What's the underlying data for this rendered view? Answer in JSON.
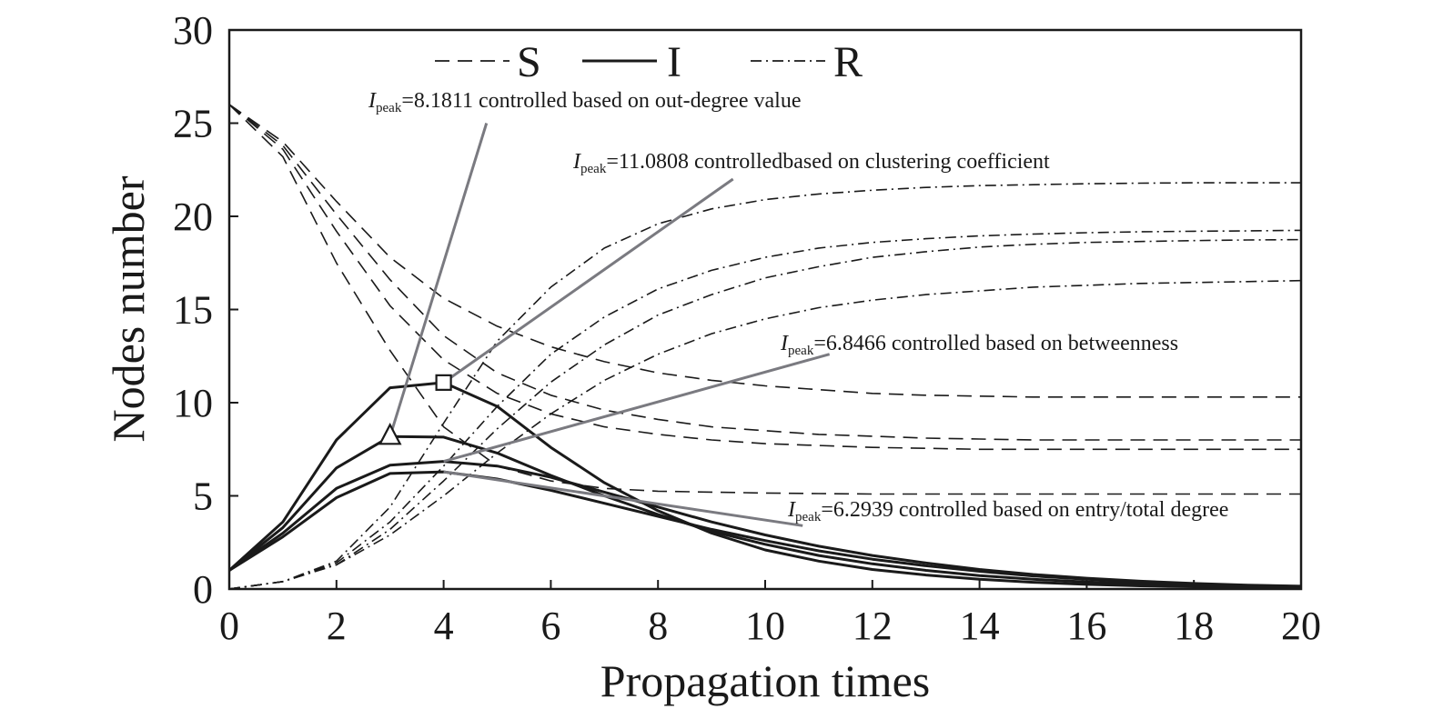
{
  "chart_data": {
    "type": "line",
    "xlabel": "Propagation times",
    "ylabel": "Nodes number",
    "xlim": [
      0,
      20
    ],
    "ylim": [
      0,
      30
    ],
    "xticks": [
      "0",
      "2",
      "4",
      "6",
      "8",
      "10",
      "12",
      "14",
      "16",
      "18",
      "20"
    ],
    "yticks": [
      "0",
      "5",
      "10",
      "15",
      "20",
      "25",
      "30"
    ],
    "legend_position": "top-center",
    "legend": [
      {
        "name": "S",
        "style": "dashed"
      },
      {
        "name": "I",
        "style": "solid"
      },
      {
        "name": "R",
        "style": "dashdot"
      }
    ],
    "x": [
      0,
      1,
      2,
      3,
      4,
      5,
      6,
      7,
      8,
      9,
      10,
      11,
      12,
      13,
      14,
      15,
      16,
      17,
      18,
      19,
      20
    ],
    "series": [
      {
        "group": "S",
        "values": [
          26,
          23.2,
          17.5,
          12.8,
          8.7,
          6.6,
          5.8,
          5.4,
          5.25,
          5.2,
          5.15,
          5.12,
          5.1,
          5.1,
          5.1,
          5.1,
          5.1,
          5.1,
          5.1,
          5.1,
          5.1
        ]
      },
      {
        "group": "S",
        "values": [
          26,
          23.6,
          19.2,
          15.2,
          12.3,
          10.5,
          9.4,
          8.7,
          8.3,
          8.0,
          7.8,
          7.7,
          7.6,
          7.55,
          7.5,
          7.5,
          7.5,
          7.5,
          7.5,
          7.5,
          7.5
        ]
      },
      {
        "group": "S",
        "values": [
          26,
          23.8,
          20.1,
          16.6,
          13.6,
          11.6,
          10.4,
          9.6,
          9.1,
          8.7,
          8.5,
          8.3,
          8.2,
          8.1,
          8.05,
          8.0,
          8.0,
          8.0,
          8.0,
          8.0,
          8.0
        ]
      },
      {
        "group": "S",
        "values": [
          26,
          24.0,
          20.8,
          17.8,
          15.6,
          14.1,
          13.0,
          12.2,
          11.6,
          11.2,
          10.9,
          10.7,
          10.5,
          10.4,
          10.35,
          10.3,
          10.3,
          10.3,
          10.3,
          10.3,
          10.3
        ]
      },
      {
        "group": "I",
        "values": [
          1,
          3.6,
          8.0,
          10.8,
          11.08,
          9.8,
          7.6,
          5.7,
          4.2,
          3.0,
          2.1,
          1.5,
          1.05,
          0.75,
          0.52,
          0.36,
          0.25,
          0.17,
          0.12,
          0.08,
          0.05
        ]
      },
      {
        "group": "I",
        "values": [
          1,
          3.3,
          6.5,
          8.18,
          8.15,
          7.3,
          6.1,
          5.0,
          4.0,
          3.1,
          2.4,
          1.8,
          1.35,
          1.0,
          0.72,
          0.52,
          0.38,
          0.27,
          0.19,
          0.13,
          0.09
        ]
      },
      {
        "group": "I",
        "values": [
          1,
          3.0,
          5.4,
          6.65,
          6.85,
          6.6,
          6.0,
          5.2,
          4.4,
          3.6,
          2.9,
          2.3,
          1.8,
          1.4,
          1.05,
          0.78,
          0.58,
          0.42,
          0.3,
          0.21,
          0.15
        ]
      },
      {
        "group": "I",
        "values": [
          1,
          2.8,
          4.9,
          6.2,
          6.29,
          5.9,
          5.3,
          4.6,
          3.9,
          3.2,
          2.6,
          2.05,
          1.6,
          1.25,
          0.95,
          0.7,
          0.52,
          0.38,
          0.27,
          0.19,
          0.13
        ]
      },
      {
        "group": "R",
        "values": [
          0,
          0.4,
          1.5,
          4.4,
          8.9,
          13.3,
          16.2,
          18.3,
          19.6,
          20.4,
          20.9,
          21.2,
          21.4,
          21.55,
          21.65,
          21.7,
          21.75,
          21.78,
          21.8,
          21.8,
          21.8
        ]
      },
      {
        "group": "R",
        "values": [
          0,
          0.4,
          1.4,
          3.6,
          6.6,
          9.8,
          12.6,
          14.6,
          16.1,
          17.1,
          17.8,
          18.3,
          18.6,
          18.8,
          18.95,
          19.05,
          19.12,
          19.17,
          19.2,
          19.22,
          19.25
        ]
      },
      {
        "group": "R",
        "values": [
          0,
          0.4,
          1.3,
          3.2,
          5.8,
          8.6,
          11.1,
          13.1,
          14.7,
          15.8,
          16.7,
          17.3,
          17.8,
          18.1,
          18.35,
          18.5,
          18.6,
          18.65,
          18.7,
          18.73,
          18.75
        ]
      },
      {
        "group": "R",
        "values": [
          0,
          0.4,
          1.3,
          2.9,
          5.0,
          7.3,
          9.4,
          11.2,
          12.6,
          13.7,
          14.5,
          15.1,
          15.5,
          15.8,
          16.0,
          16.2,
          16.3,
          16.4,
          16.45,
          16.5,
          16.55
        ]
      }
    ],
    "markers": [
      {
        "shape": "triangle",
        "x": 3,
        "y": 8.18
      },
      {
        "shape": "square",
        "x": 4,
        "y": 11.08
      }
    ],
    "annotations": [
      {
        "prefix": "I",
        "sub": "peak",
        "text": "=8.1811 controlled based on out-degree value",
        "target": [
          3,
          8.18
        ],
        "end": [
          4.8,
          25.0
        ]
      },
      {
        "prefix": "I",
        "sub": "peak",
        "text": "=11.0808 controlledbased on clustering coefficient",
        "target": [
          4,
          11.08
        ],
        "end": [
          9.4,
          22.0
        ]
      },
      {
        "prefix": "I",
        "sub": "peak",
        "text": "=6.8466 controlled based on betweenness",
        "target": [
          4,
          6.85
        ],
        "end": [
          11.2,
          12.6
        ]
      },
      {
        "prefix": "I",
        "sub": "peak",
        "text": "=6.2939 controlled based on entry/total degree",
        "target": [
          4,
          6.29
        ],
        "end": [
          10.7,
          3.4
        ]
      }
    ]
  }
}
